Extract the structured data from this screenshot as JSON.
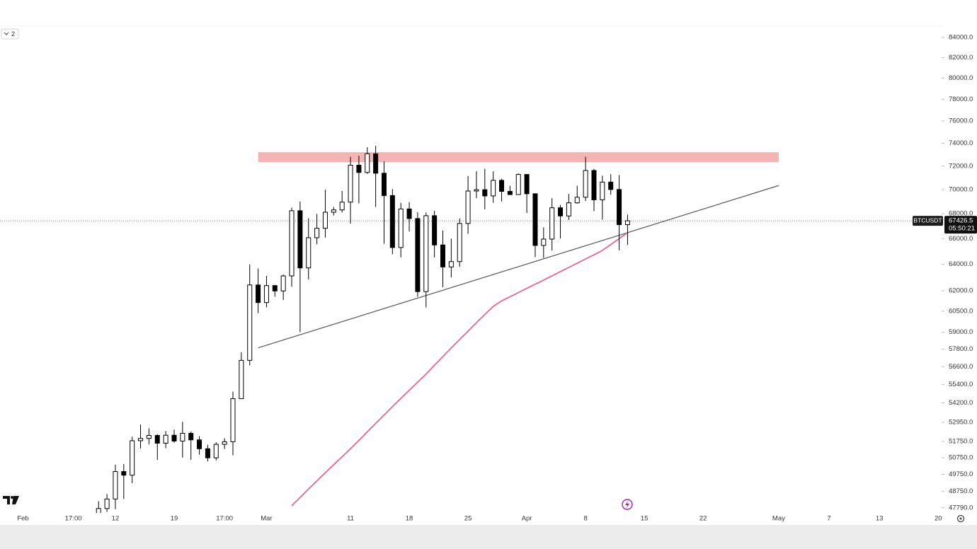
{
  "chart_data": {
    "type": "candlestick",
    "symbol": "BTCUSDT",
    "last_price": 67426.5,
    "countdown": "05:50:21",
    "indicator_count": 2,
    "log_scale": true,
    "grid": false,
    "up_color": "#ffffff",
    "down_color": "#000000",
    "ma_color": "#f06292",
    "categories": [
      "Feb",
      null,
      null,
      null,
      null,
      null,
      "17:00",
      null,
      null,
      null,
      null,
      "12",
      null,
      null,
      null,
      null,
      null,
      null,
      "19",
      null,
      null,
      null,
      null,
      null,
      "17:00",
      null,
      null,
      null,
      null,
      "Mar",
      null,
      null,
      null,
      null,
      null,
      null,
      null,
      null,
      null,
      "11",
      null,
      null,
      null,
      null,
      null,
      null,
      "18",
      null,
      null,
      null,
      null,
      null,
      null,
      "25",
      null,
      null,
      null,
      null,
      null,
      null,
      "Apr",
      null,
      null,
      null,
      null,
      null,
      null,
      "8",
      null,
      null,
      null,
      null,
      null,
      null,
      "15",
      null,
      null,
      null,
      null,
      null,
      null,
      "22",
      null,
      null,
      null,
      null,
      null,
      null,
      null,
      null,
      "May",
      null,
      null,
      null,
      null,
      null,
      "7",
      null,
      null,
      null,
      null,
      null,
      "13",
      null,
      null,
      null,
      null,
      null,
      null,
      "20"
    ],
    "open": [
      null,
      null,
      null,
      null,
      null,
      null,
      null,
      null,
      null,
      47132,
      47751,
      48300,
      49918,
      49699,
      51796,
      51939,
      52124,
      51642,
      52138,
      51775,
      52258,
      51849,
      51300,
      50744,
      51571,
      51733,
      54476,
      57037,
      62432,
      61130,
      62387,
      61987,
      63114,
      68245,
      63724,
      66074,
      66823,
      68124,
      68313,
      68955,
      72078,
      71452,
      73072,
      71388,
      69500,
      65300,
      68393,
      67609,
      61937,
      67840,
      65501,
      63796,
      64209,
      67210,
      69880,
      69988,
      69469,
      70780,
      69850,
      69582,
      71280,
      69649,
      65463,
      65963,
      68487,
      67820,
      68896,
      69360,
      71620,
      69146,
      70631,
      70006,
      67116,
      null,
      null,
      null,
      null,
      null,
      null,
      null,
      null,
      null,
      null,
      null,
      null,
      null,
      null,
      null,
      null,
      null,
      null,
      null,
      null,
      null,
      null,
      null,
      null,
      null,
      null,
      null,
      null,
      null,
      null,
      null,
      null,
      null,
      null,
      null,
      null,
      null
    ],
    "high": [
      null,
      null,
      null,
      null,
      null,
      null,
      null,
      null,
      null,
      48170,
      48592,
      50334,
      50368,
      52043,
      52816,
      52575,
      52200,
      52400,
      52488,
      52985,
      52366,
      52080,
      51547,
      51700,
      51950,
      54938,
      57588,
      64000,
      63676,
      63114,
      62433,
      63231,
      68499,
      69000,
      67637,
      67985,
      69990,
      68541,
      69887,
      72800,
      72900,
      73650,
      73777,
      72419,
      70043,
      68904,
      68956,
      68124,
      68100,
      68240,
      66650,
      65999,
      67624,
      71150,
      71561,
      71769,
      71552,
      70916,
      70321,
      71366,
      71288,
      69674,
      66903,
      69291,
      68725,
      69629,
      70326,
      72797,
      71758,
      71172,
      71305,
      71227,
      67929,
      null,
      null,
      null,
      null,
      null,
      null,
      null,
      null,
      null,
      null,
      null,
      null,
      null,
      null,
      null,
      null,
      null,
      null,
      null,
      null,
      null,
      null,
      null,
      null,
      null,
      null,
      null,
      null,
      null,
      null,
      null,
      null,
      null,
      null,
      null,
      null,
      null
    ],
    "low": [
      null,
      null,
      null,
      null,
      null,
      null,
      null,
      null,
      null,
      46800,
      47557,
      47710,
      48300,
      49225,
      51314,
      51566,
      50625,
      51330,
      51676,
      50760,
      50625,
      50935,
      50525,
      50585,
      51283,
      50901,
      54450,
      56690,
      60364,
      60777,
      61561,
      61320,
      62300,
      59005,
      62848,
      65551,
      66082,
      67861,
      68094,
      67194,
      68845,
      71334,
      68555,
      65600,
      64780,
      64533,
      66566,
      61555,
      60775,
      64529,
      62260,
      63000,
      63820,
      66385,
      69280,
      68359,
      68903,
      69009,
      69540,
      69562,
      68062,
      64550,
      64493,
      65064,
      66011,
      67491,
      68824,
      69043,
      68210,
      67518,
      69567,
      65086,
      65500,
      null,
      null,
      null,
      null,
      null,
      null,
      null,
      null,
      null,
      null,
      null,
      null,
      null,
      null,
      null,
      null,
      null,
      null,
      null,
      null,
      null,
      null,
      null,
      null,
      null,
      null,
      null,
      null,
      null,
      null,
      null,
      null,
      null,
      null,
      null,
      null,
      null
    ],
    "close": [
      null,
      null,
      null,
      null,
      null,
      null,
      null,
      null,
      null,
      47751,
      48299,
      49917,
      49699,
      51795,
      51939,
      52124,
      51642,
      52138,
      51775,
      52258,
      51849,
      51300,
      50744,
      51571,
      51733,
      54476,
      57037,
      62432,
      61130,
      62387,
      61987,
      63113,
      68245,
      63724,
      66074,
      66823,
      68124,
      68313,
      68955,
      72078,
      71452,
      73072,
      71388,
      69500,
      65300,
      68393,
      67609,
      61937,
      67840,
      65501,
      63796,
      64209,
      67210,
      69880,
      69988,
      69469,
      70780,
      69850,
      69582,
      71280,
      69649,
      65463,
      65963,
      68487,
      67820,
      68896,
      69360,
      71620,
      69146,
      70631,
      70006,
      67116,
      67426.5,
      null,
      null,
      null,
      null,
      null,
      null,
      null,
      null,
      null,
      null,
      null,
      null,
      null,
      null,
      null,
      null,
      null,
      null,
      null,
      null,
      null,
      null,
      null,
      null,
      null,
      null,
      null,
      null,
      null,
      null,
      null,
      null,
      null,
      null,
      null,
      null,
      null
    ],
    "ma": [
      null,
      null,
      null,
      null,
      null,
      null,
      null,
      null,
      null,
      null,
      null,
      null,
      null,
      null,
      null,
      null,
      null,
      null,
      null,
      null,
      null,
      null,
      null,
      null,
      null,
      null,
      null,
      null,
      null,
      null,
      null,
      null,
      47910,
      48390,
      48880,
      49360,
      49850,
      50330,
      50810,
      51300,
      51810,
      52350,
      52880,
      53420,
      53960,
      54490,
      55030,
      55570,
      56110,
      56700,
      57290,
      57890,
      58480,
      59070,
      59670,
      60260,
      60850,
      61250,
      61560,
      61870,
      62180,
      62490,
      62800,
      63120,
      63440,
      63760,
      64080,
      64410,
      64730,
      65070,
      65540,
      66000,
      66470,
      null,
      null,
      null,
      null,
      null,
      null,
      null,
      null,
      null,
      null,
      null,
      null,
      null,
      null,
      null,
      null,
      null,
      null,
      null,
      null,
      null,
      null,
      null,
      null,
      null,
      null,
      null,
      null,
      null,
      null,
      null,
      null,
      null,
      null,
      null,
      null,
      null
    ],
    "resistance_zone": {
      "from": 28,
      "to": 90,
      "low": 72340,
      "high": 73210,
      "color": "#f4b4b4"
    },
    "trend_line": {
      "from": 28,
      "to": 90,
      "start": 57900,
      "end": 70340,
      "color": "#555555"
    },
    "ylim": [
      47500,
      85080
    ],
    "yticks": [
      {
        "value": 84000,
        "label": "84000.0"
      },
      {
        "value": 82000,
        "label": "82000.0"
      },
      {
        "value": 80000,
        "label": "80000.0"
      },
      {
        "value": 78000,
        "label": "78000.0"
      },
      {
        "value": 76000,
        "label": "76000.0"
      },
      {
        "value": 74000,
        "label": "74000.0"
      },
      {
        "value": 72000,
        "label": "72000.0"
      },
      {
        "value": 70000,
        "label": "70000.0"
      },
      {
        "value": 68000,
        "label": "68000.0"
      },
      {
        "value": 66000,
        "label": "66000.0"
      },
      {
        "value": 64000,
        "label": "64000.0"
      },
      {
        "value": 62000,
        "label": "62000.0"
      },
      {
        "value": 60500,
        "label": "60500.0"
      },
      {
        "value": 59000,
        "label": "59000.0"
      },
      {
        "value": 57800,
        "label": "57800.0"
      },
      {
        "value": 56600,
        "label": "56600.0"
      },
      {
        "value": 55400,
        "label": "55400.0"
      },
      {
        "value": 54200,
        "label": "54200.0"
      },
      {
        "value": 52950,
        "label": "52950.0"
      },
      {
        "value": 51750,
        "label": "51750.0"
      },
      {
        "value": 50750,
        "label": "50750.0"
      },
      {
        "value": 49750,
        "label": "49750.0"
      },
      {
        "value": 48750,
        "label": "48750.0"
      },
      {
        "value": 47790,
        "label": "47790.0"
      }
    ]
  }
}
